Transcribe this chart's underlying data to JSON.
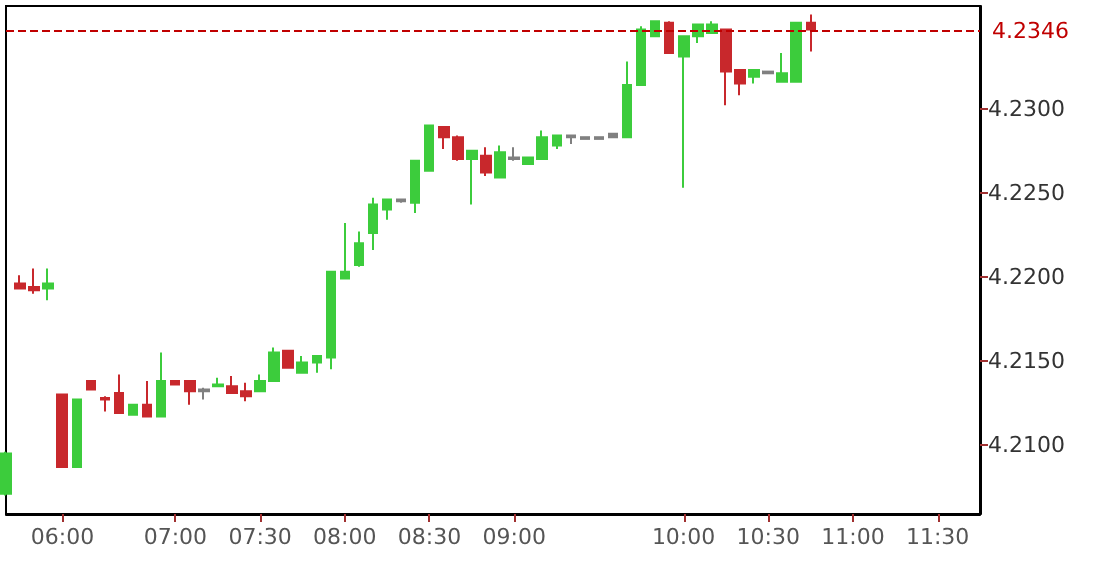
{
  "chart_data": {
    "type": "candlestick",
    "categories": [
      null,
      null,
      null,
      null,
      "06:00",
      null,
      null,
      null,
      null,
      null,
      null,
      null,
      "07:00",
      null,
      null,
      null,
      null,
      null,
      "07:30",
      null,
      null,
      null,
      null,
      null,
      "08:00",
      null,
      null,
      null,
      null,
      null,
      "08:30",
      null,
      null,
      null,
      null,
      null,
      "09:00",
      null,
      null,
      null,
      null,
      null,
      null,
      null,
      null,
      null,
      null,
      null,
      "10:00",
      null,
      null,
      null,
      null,
      null,
      "10:30",
      null,
      null,
      null,
      null,
      null,
      "11:00",
      null,
      null,
      null,
      null,
      null,
      "11:30",
      null,
      null,
      null
    ],
    "ohlc": [
      [
        4.2071,
        4.2096,
        4.207,
        4.2095
      ],
      [
        4.2196,
        4.2201,
        4.2193,
        4.2193
      ],
      [
        4.2194,
        4.2205,
        4.219,
        4.2192
      ],
      [
        4.2193,
        4.2205,
        4.2186,
        4.2196
      ],
      [
        4.213,
        4.213,
        4.2087,
        4.2087
      ],
      [
        4.2087,
        4.2127,
        4.2087,
        4.2127
      ],
      [
        4.2138,
        4.2138,
        4.2133,
        4.2133
      ],
      [
        4.2128,
        4.2129,
        4.212,
        4.2127
      ],
      [
        4.2131,
        4.2142,
        4.2119,
        4.2119
      ],
      [
        4.2118,
        4.2124,
        4.2118,
        4.2124
      ],
      [
        4.2124,
        4.2138,
        4.2117,
        4.2117
      ],
      [
        4.2117,
        4.2155,
        4.2117,
        4.2138
      ],
      [
        4.2138,
        4.2138,
        4.2136,
        4.2136
      ],
      [
        4.2138,
        4.2138,
        4.2124,
        4.2132
      ],
      [
        4.2132,
        4.2134,
        4.2127,
        4.2133
      ],
      [
        4.2135,
        4.214,
        4.2135,
        4.2136
      ],
      [
        4.2135,
        4.2141,
        4.2131,
        4.2131
      ],
      [
        4.2132,
        4.2137,
        4.2126,
        4.2129
      ],
      [
        4.2132,
        4.2142,
        4.2132,
        4.2138
      ],
      [
        4.2138,
        4.2158,
        4.2138,
        4.2155
      ],
      [
        4.2156,
        4.2156,
        4.2146,
        4.2146
      ],
      [
        4.2143,
        4.2153,
        4.2143,
        4.2149
      ],
      [
        4.2149,
        4.2153,
        4.2143,
        4.2153
      ],
      [
        4.2152,
        4.2203,
        4.2145,
        4.2203
      ],
      [
        4.2199,
        4.2232,
        4.2199,
        4.2203
      ],
      [
        4.2207,
        4.2227,
        4.2206,
        4.222
      ],
      [
        4.2226,
        4.2247,
        4.2216,
        4.2243
      ],
      [
        4.224,
        4.2246,
        4.2234,
        4.2246
      ],
      [
        4.2245,
        4.2246,
        4.2244,
        4.2246
      ],
      [
        4.2244,
        4.2269,
        4.2238,
        4.2269
      ],
      [
        4.2263,
        4.229,
        4.2263,
        4.229
      ],
      [
        4.2289,
        4.2289,
        4.2276,
        4.2283
      ],
      [
        4.2283,
        4.2284,
        4.2269,
        4.227
      ],
      [
        4.227,
        4.2275,
        4.2243,
        4.2275
      ],
      [
        4.2272,
        4.2277,
        4.226,
        4.2262
      ],
      [
        4.2259,
        4.2278,
        4.2259,
        4.2274
      ],
      [
        4.227,
        4.2277,
        4.2269,
        4.2271
      ],
      [
        4.2267,
        4.2271,
        4.2267,
        4.2271
      ],
      [
        4.227,
        4.2287,
        4.227,
        4.2283
      ],
      [
        4.2278,
        4.2284,
        4.2276,
        4.2284
      ],
      [
        4.2283,
        4.2284,
        4.2279,
        4.2284
      ],
      [
        4.2282,
        4.2283,
        4.2282,
        4.2283
      ],
      [
        4.2282,
        4.2283,
        4.2282,
        4.2283
      ],
      [
        4.2283,
        4.2285,
        4.2283,
        4.2285
      ],
      [
        4.2283,
        4.2328,
        4.2283,
        4.2314
      ],
      [
        4.2314,
        4.2349,
        4.2314,
        4.2347
      ],
      [
        4.2343,
        4.2352,
        4.2343,
        4.2352
      ],
      [
        4.2351,
        4.2352,
        4.2333,
        4.2333
      ],
      [
        4.2331,
        4.2343,
        4.2253,
        4.2343
      ],
      [
        4.2343,
        4.235,
        4.2339,
        4.235
      ],
      [
        4.2345,
        4.2352,
        4.2345,
        4.235
      ],
      [
        4.2347,
        4.2347,
        4.2302,
        4.2322
      ],
      [
        4.2323,
        4.2323,
        4.2308,
        4.2315
      ],
      [
        4.2319,
        4.2323,
        4.2315,
        4.2323
      ],
      [
        4.2321,
        4.2322,
        4.2321,
        4.2322
      ],
      [
        4.2316,
        4.2333,
        4.2316,
        4.2321
      ],
      [
        4.2316,
        4.2351,
        4.2316,
        4.2351
      ],
      [
        4.2351,
        4.2356,
        4.2334,
        4.2347
      ],
      null,
      null,
      null,
      null,
      null,
      null,
      null,
      null,
      null,
      null,
      null,
      null
    ],
    "colors": [
      "#3ccc3c",
      "#c8282c",
      "#c8282c",
      "#3ccc3c",
      "#c8282c",
      "#3ccc3c",
      "#c8282c",
      "#c8282c",
      "#c8282c",
      "#3ccc3c",
      "#c8282c",
      "#3ccc3c",
      "#c8282c",
      "#c8282c",
      "#808080",
      "#3ccc3c",
      "#c8282c",
      "#c8282c",
      "#3ccc3c",
      "#3ccc3c",
      "#c8282c",
      "#3ccc3c",
      "#3ccc3c",
      "#3ccc3c",
      "#3ccc3c",
      "#3ccc3c",
      "#3ccc3c",
      "#3ccc3c",
      "#808080",
      "#3ccc3c",
      "#3ccc3c",
      "#c8282c",
      "#c8282c",
      "#3ccc3c",
      "#c8282c",
      "#3ccc3c",
      "#808080",
      "#3ccc3c",
      "#3ccc3c",
      "#3ccc3c",
      "#808080",
      "#808080",
      "#808080",
      "#808080",
      "#3ccc3c",
      "#3ccc3c",
      "#3ccc3c",
      "#c8282c",
      "#3ccc3c",
      "#3ccc3c",
      "#3ccc3c",
      "#c8282c",
      "#c8282c",
      "#3ccc3c",
      "#808080",
      "#3ccc3c",
      "#3ccc3c",
      "#c8282c",
      null,
      null,
      null,
      null,
      null,
      null,
      null,
      null,
      null,
      null,
      null,
      null
    ],
    "ylim": [
      4.2059,
      4.2361
    ],
    "yticks": [
      {
        "value": 4.21,
        "label": "4.2100"
      },
      {
        "value": 4.215,
        "label": "4.2150"
      },
      {
        "value": 4.22,
        "label": "4.2200"
      },
      {
        "value": 4.225,
        "label": "4.2250"
      },
      {
        "value": 4.23,
        "label": "4.2300"
      }
    ],
    "ref_lines": [
      {
        "axis": "y",
        "value": 4.2346,
        "label": "4.2346",
        "color": "#c00000",
        "line_style": "dashed"
      }
    ]
  }
}
